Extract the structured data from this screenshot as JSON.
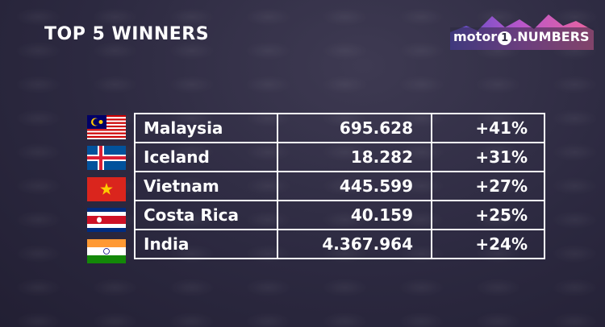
{
  "header": {
    "title": "TOP 5 WINNERS"
  },
  "logo": {
    "brand": "motor",
    "number": "1",
    "label": ".NUMBERS"
  },
  "table": {
    "rows": [
      [
        "Malaysia",
        "695.628",
        "+41%"
      ],
      [
        "Iceland",
        "18.282",
        "+31%"
      ],
      [
        "Vietnam",
        "445.599",
        "+27%"
      ],
      [
        "Costa Rica",
        "40.159",
        "+25%"
      ],
      [
        "India",
        "4.367.964",
        "+24%"
      ]
    ]
  }
}
